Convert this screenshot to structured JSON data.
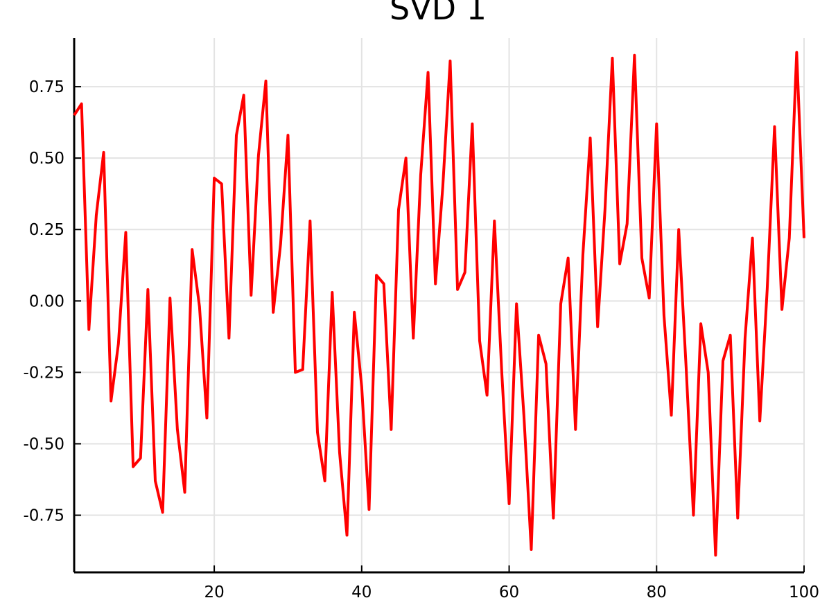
{
  "chart_data": {
    "type": "line",
    "title": "SVD 1",
    "x": [
      1,
      2,
      3,
      4,
      5,
      6,
      7,
      8,
      9,
      10,
      11,
      12,
      13,
      14,
      15,
      16,
      17,
      18,
      19,
      20,
      21,
      22,
      23,
      24,
      25,
      26,
      27,
      28,
      29,
      30,
      31,
      32,
      33,
      34,
      35,
      36,
      37,
      38,
      39,
      40,
      41,
      42,
      43,
      44,
      45,
      46,
      47,
      48,
      49,
      50,
      51,
      52,
      53,
      54,
      55,
      56,
      57,
      58,
      59,
      60,
      61,
      62,
      63,
      64,
      65,
      66,
      67,
      68,
      69,
      70,
      71,
      72,
      73,
      74,
      75,
      76,
      77,
      78,
      79,
      80,
      81,
      82,
      83,
      84,
      85,
      86,
      87,
      88,
      89,
      90,
      91,
      92,
      93,
      94,
      95,
      96,
      97,
      98,
      99,
      100
    ],
    "series": [
      {
        "color": "#ff0000",
        "values": [
          0.65,
          0.69,
          -0.1,
          0.3,
          0.52,
          -0.35,
          -0.15,
          0.24,
          -0.58,
          -0.55,
          0.04,
          -0.63,
          -0.74,
          0.01,
          -0.45,
          -0.67,
          0.18,
          -0.02,
          -0.41,
          0.43,
          0.41,
          -0.13,
          0.58,
          0.72,
          0.02,
          0.51,
          0.77,
          -0.04,
          0.2,
          0.58,
          -0.25,
          -0.24,
          0.28,
          -0.46,
          -0.63,
          0.03,
          -0.53,
          -0.82,
          -0.04,
          -0.3,
          -0.73,
          0.09,
          0.06,
          -0.45,
          0.32,
          0.5,
          -0.13,
          0.44,
          0.8,
          0.06,
          0.4,
          0.84,
          0.04,
          0.1,
          0.62,
          -0.14,
          -0.33,
          0.28,
          -0.25,
          -0.71,
          -0.01,
          -0.4,
          -0.87,
          -0.12,
          -0.22,
          -0.76,
          -0.01,
          0.15,
          -0.45,
          0.16,
          0.57,
          -0.09,
          0.32,
          0.85,
          0.13,
          0.27,
          0.86,
          0.15,
          0.01,
          0.62,
          -0.05,
          -0.4,
          0.25,
          -0.23,
          -0.75,
          -0.08,
          -0.25,
          -0.89,
          -0.21,
          -0.12,
          -0.76,
          -0.13,
          0.22,
          -0.42,
          0.04,
          0.61,
          -0.03,
          0.22,
          0.87,
          0.22
        ]
      }
    ],
    "xlim": [
      1,
      100
    ],
    "xticks": [
      20,
      40,
      60,
      80,
      100
    ],
    "ylim": [
      -0.95,
      0.92
    ],
    "yticks": [
      -0.75,
      {
        "value": -0.5,
        "label": "-0.50"
      },
      -0.25,
      {
        "value": 0,
        "label": "0.00"
      },
      0.25,
      {
        "value": 0.5,
        "label": "0.50"
      },
      0.75
    ],
    "grid": true
  }
}
